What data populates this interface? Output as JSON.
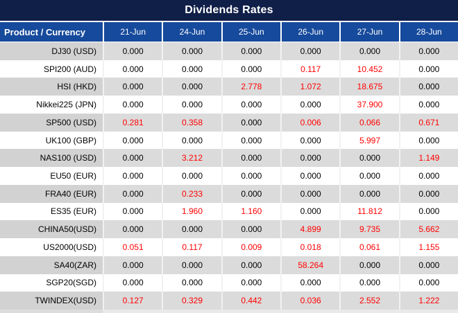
{
  "window": {
    "title": "Dividends Rates"
  },
  "colors": {
    "title_bar_bg": "#101f48",
    "header_bg": "#164a9c",
    "header_text": "#ffffff",
    "row_alt_bg": "#dbdbdb",
    "row_alt_head_bg": "#d2d2d2",
    "row_bg": "#ffffff",
    "value_text": "#000000",
    "highlight_text": "#ff0000"
  },
  "chart_data": {
    "type": "table",
    "title": "Dividends Rates",
    "row_header_label": "Product / Currency",
    "columns": [
      "21-Jun",
      "24-Jun",
      "25-Jun",
      "26-Jun",
      "27-Jun",
      "28-Jun"
    ],
    "rows": [
      {
        "product": "DJ30 (USD)",
        "values": [
          "0.000",
          "0.000",
          "0.000",
          "0.000",
          "0.000",
          "0.000"
        ],
        "red": [
          0,
          0,
          0,
          0,
          0,
          0
        ]
      },
      {
        "product": "SPI200 (AUD)",
        "values": [
          "0.000",
          "0.000",
          "0.000",
          "0.117",
          "10.452",
          "0.000"
        ],
        "red": [
          0,
          0,
          0,
          1,
          1,
          0
        ]
      },
      {
        "product": "HSI (HKD)",
        "values": [
          "0.000",
          "0.000",
          "2.778",
          "1.072",
          "18.675",
          "0.000"
        ],
        "red": [
          0,
          0,
          1,
          1,
          1,
          0
        ]
      },
      {
        "product": "Nikkei225 (JPN)",
        "values": [
          "0.000",
          "0.000",
          "0.000",
          "0.000",
          "37.900",
          "0.000"
        ],
        "red": [
          0,
          0,
          0,
          0,
          1,
          0
        ]
      },
      {
        "product": "SP500 (USD)",
        "values": [
          "0.281",
          "0.358",
          "0.000",
          "0.006",
          "0.066",
          "0.671"
        ],
        "red": [
          1,
          1,
          0,
          1,
          1,
          1
        ]
      },
      {
        "product": "UK100 (GBP)",
        "values": [
          "0.000",
          "0.000",
          "0.000",
          "0.000",
          "5.997",
          "0.000"
        ],
        "red": [
          0,
          0,
          0,
          0,
          1,
          0
        ]
      },
      {
        "product": "NAS100 (USD)",
        "values": [
          "0.000",
          "3.212",
          "0.000",
          "0.000",
          "0.000",
          "1.149"
        ],
        "red": [
          0,
          1,
          0,
          0,
          0,
          1
        ]
      },
      {
        "product": "EU50 (EUR)",
        "values": [
          "0.000",
          "0.000",
          "0.000",
          "0.000",
          "0.000",
          "0.000"
        ],
        "red": [
          0,
          0,
          0,
          0,
          0,
          0
        ]
      },
      {
        "product": "FRA40 (EUR)",
        "values": [
          "0.000",
          "0.233",
          "0.000",
          "0.000",
          "0.000",
          "0.000"
        ],
        "red": [
          0,
          1,
          0,
          0,
          0,
          0
        ]
      },
      {
        "product": "ES35 (EUR)",
        "values": [
          "0.000",
          "1.960",
          "1.160",
          "0.000",
          "11.812",
          "0.000"
        ],
        "red": [
          0,
          1,
          1,
          0,
          1,
          0
        ]
      },
      {
        "product": "CHINA50(USD)",
        "values": [
          "0.000",
          "0.000",
          "0.000",
          "4.899",
          "9.735",
          "5.662"
        ],
        "red": [
          0,
          0,
          0,
          1,
          1,
          1
        ]
      },
      {
        "product": "US2000(USD)",
        "values": [
          "0.051",
          "0.117",
          "0.009",
          "0.018",
          "0.061",
          "1.155"
        ],
        "red": [
          1,
          1,
          1,
          1,
          1,
          1
        ]
      },
      {
        "product": "SA40(ZAR)",
        "values": [
          "0.000",
          "0.000",
          "0.000",
          "58.264",
          "0.000",
          "0.000"
        ],
        "red": [
          0,
          0,
          0,
          1,
          0,
          0
        ]
      },
      {
        "product": "SGP20(SGD)",
        "values": [
          "0.000",
          "0.000",
          "0.000",
          "0.000",
          "0.000",
          "0.000"
        ],
        "red": [
          0,
          0,
          0,
          0,
          0,
          0
        ]
      },
      {
        "product": "TWINDEX(USD)",
        "values": [
          "0.127",
          "0.329",
          "0.442",
          "0.036",
          "2.552",
          "1.222"
        ],
        "red": [
          1,
          1,
          1,
          1,
          1,
          1
        ]
      }
    ]
  }
}
